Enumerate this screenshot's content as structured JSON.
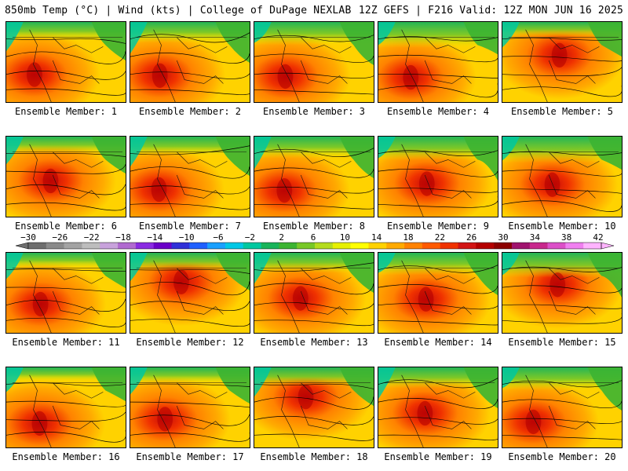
{
  "header": {
    "title_left": "850mb Temp (°C) | Wind (kts) | College of DuPage NEXLAB",
    "title_right": "12Z GEFS | F216 Valid: 12Z MON JUN 16 2025"
  },
  "panels": [
    {
      "label": "Ensemble Member: 1",
      "hot": "west"
    },
    {
      "label": "Ensemble Member: 2",
      "hot": "west"
    },
    {
      "label": "Ensemble Member: 3",
      "hot": "west"
    },
    {
      "label": "Ensemble Member: 4",
      "hot": "west"
    },
    {
      "label": "Ensemble Member: 5",
      "hot": "north"
    },
    {
      "label": "Ensemble Member: 6",
      "hot": "central"
    },
    {
      "label": "Ensemble Member: 7",
      "hot": "west"
    },
    {
      "label": "Ensemble Member: 8",
      "hot": "west"
    },
    {
      "label": "Ensemble Member: 9",
      "hot": "central"
    },
    {
      "label": "Ensemble Member: 10",
      "hot": "central"
    },
    {
      "label": "Ensemble Member: 11",
      "hot": "west"
    },
    {
      "label": "Ensemble Member: 12",
      "hot": "north"
    },
    {
      "label": "Ensemble Member: 13",
      "hot": "central"
    },
    {
      "label": "Ensemble Member: 14",
      "hot": "central"
    },
    {
      "label": "Ensemble Member: 15",
      "hot": "north"
    },
    {
      "label": "Ensemble Member: 16",
      "hot": "west"
    },
    {
      "label": "Ensemble Member: 17",
      "hot": "west"
    },
    {
      "label": "Ensemble Member: 18",
      "hot": "north"
    },
    {
      "label": "Ensemble Member: 19",
      "hot": "central"
    },
    {
      "label": "Ensemble Member: 20",
      "hot": "west"
    }
  ],
  "colorbar": {
    "labels": [
      "−30",
      "−26",
      "−22",
      "−18",
      "−14",
      "−10",
      "−6",
      "−2",
      "2",
      "6",
      "10",
      "14",
      "18",
      "22",
      "26",
      "30",
      "34",
      "38",
      "42"
    ],
    "colors": [
      "#6e6e6e",
      "#8a8a8a",
      "#a3a3a3",
      "#bdbdbd",
      "#c8a2dc",
      "#b06ad0",
      "#8a2be2",
      "#6a00c8",
      "#3030d8",
      "#2060ff",
      "#1aa0ff",
      "#00c8e6",
      "#00c8a0",
      "#19b45a",
      "#3cb432",
      "#78c828",
      "#b4dc1e",
      "#e6f000",
      "#ffff00",
      "#ffd200",
      "#ffaa00",
      "#ff8200",
      "#ff5a00",
      "#f03200",
      "#d21414",
      "#b40000",
      "#8c0000",
      "#a0146e",
      "#c8288c",
      "#dc50c8",
      "#f080f0",
      "#ffb4ff"
    ]
  }
}
